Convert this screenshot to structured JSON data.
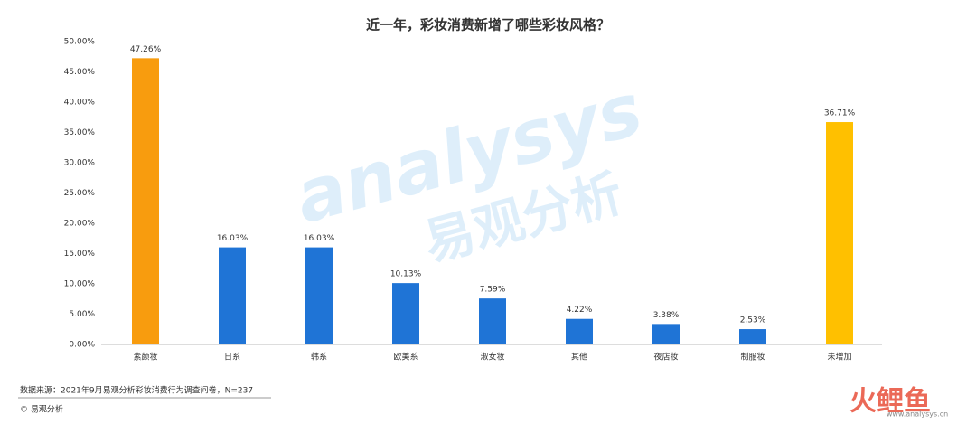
{
  "chart_data": {
    "type": "bar",
    "title": "近一年，彩妆消费新增了哪些彩妆风格？",
    "categories": [
      "素颜妆",
      "日系",
      "韩系",
      "欧美系",
      "淑女妆",
      "其他",
      "夜店妆",
      "制服妆",
      "未增加"
    ],
    "values": [
      47.26,
      16.03,
      16.03,
      10.13,
      7.59,
      4.22,
      3.38,
      2.53,
      36.71
    ],
    "value_labels": [
      "47.26%",
      "16.03%",
      "16.03%",
      "10.13%",
      "7.59%",
      "4.22%",
      "3.38%",
      "2.53%",
      "36.71%"
    ],
    "colors": [
      "#f89c0e",
      "#1f74d6",
      "#1f74d6",
      "#1f74d6",
      "#1f74d6",
      "#1f74d6",
      "#1f74d6",
      "#1f74d6",
      "#ffc000"
    ],
    "ylim": [
      0,
      50
    ],
    "yticks": [
      {
        "value": 0,
        "label": "0.00%"
      },
      {
        "value": 5,
        "label": "5.00%"
      },
      {
        "value": 10,
        "label": "10.00%"
      },
      {
        "value": 15,
        "label": "15.00%"
      },
      {
        "value": 20,
        "label": "20.00%"
      },
      {
        "value": 25,
        "label": "25.00%"
      },
      {
        "value": 30,
        "label": "30.00%"
      },
      {
        "value": 35,
        "label": "35.00%"
      },
      {
        "value": 40,
        "label": "40.00%"
      },
      {
        "value": 45,
        "label": "45.00%"
      },
      {
        "value": 50,
        "label": "50.00%"
      }
    ],
    "grid": false,
    "source": "数据来源：2021年9月易观分析彩妆消费行为调查问卷，N=237",
    "footer": "© 易观分析",
    "watermark": "analysys",
    "watermark_cn": "易观分析",
    "corner_brand": "火鲤鱼",
    "corner_url": "www.analysys.cn"
  }
}
